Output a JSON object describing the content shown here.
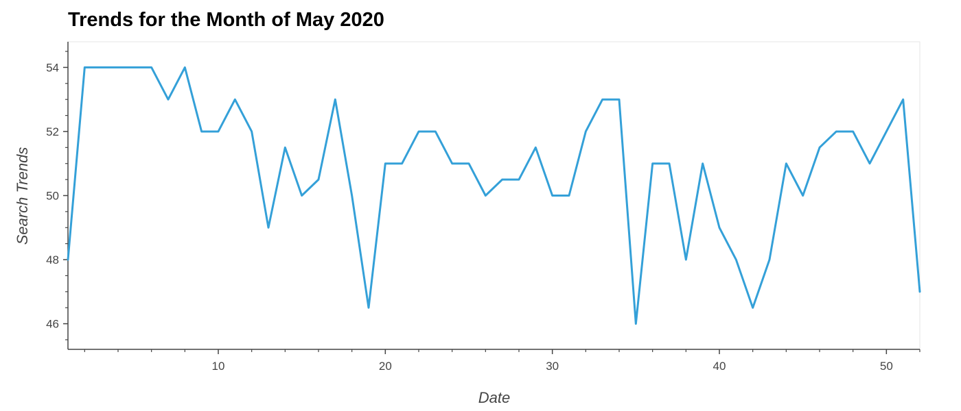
{
  "chart_data": {
    "type": "line",
    "title": "Trends for the Month of May 2020",
    "xlabel": "Date",
    "ylabel": "Search Trends",
    "xlim": [
      1,
      52
    ],
    "ylim": [
      45.2,
      54.8
    ],
    "x_ticks": [
      10,
      20,
      30,
      40,
      50
    ],
    "y_ticks": [
      46,
      48,
      50,
      52,
      54
    ],
    "grid": false,
    "line_color": "#34a0d8",
    "x": [
      1,
      2,
      3,
      4,
      5,
      6,
      7,
      8,
      9,
      10,
      11,
      12,
      13,
      14,
      15,
      16,
      17,
      18,
      19,
      20,
      21,
      22,
      23,
      24,
      25,
      26,
      27,
      28,
      29,
      30,
      31,
      32,
      33,
      34,
      35,
      36,
      37,
      38,
      39,
      40,
      41,
      42,
      43,
      44,
      45,
      46,
      47,
      48,
      49,
      50,
      51,
      52
    ],
    "y": [
      48,
      54,
      54,
      54,
      54,
      54,
      53,
      54,
      52,
      52,
      53,
      52,
      49,
      51.5,
      50,
      50.5,
      53,
      50,
      46.5,
      51,
      51,
      52,
      52,
      51,
      51,
      50,
      50.5,
      50.5,
      51.5,
      50,
      50,
      52,
      53,
      53,
      46,
      51,
      51,
      48,
      51,
      49,
      48,
      46.5,
      48,
      51,
      50,
      51.5,
      52,
      52,
      51,
      52,
      53,
      47
    ]
  }
}
